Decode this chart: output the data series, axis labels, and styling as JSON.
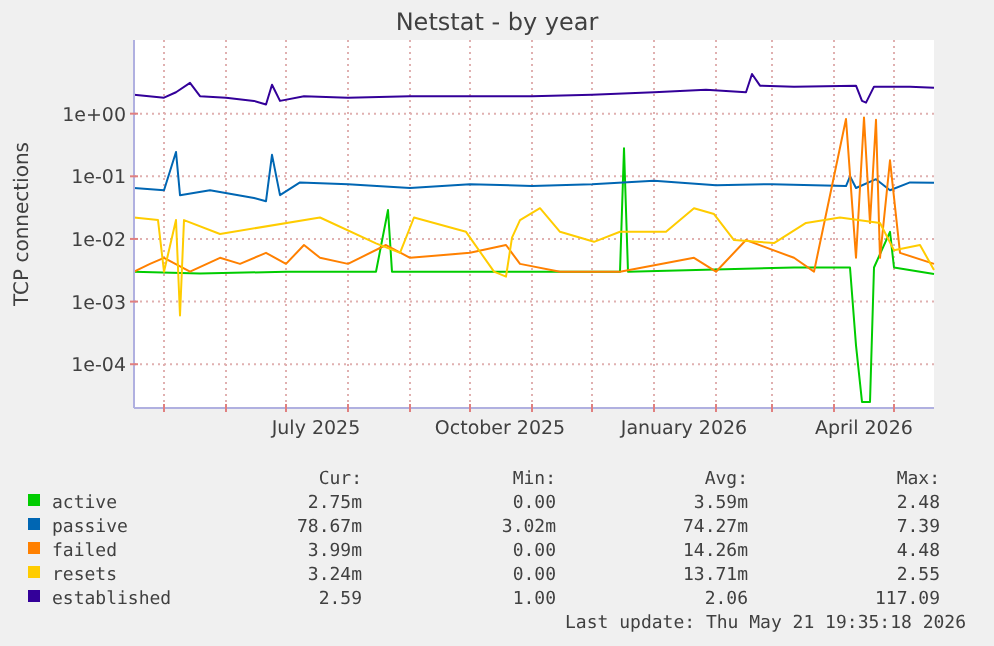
{
  "chart_data": {
    "type": "line",
    "title": "Netstat - by year",
    "ylabel": "TCP connections",
    "log": "y",
    "grid": true,
    "legend": "bottom",
    "line_style": "solid",
    "xlim": [
      "2025-04-16",
      "2026-05-21"
    ],
    "xticks": [
      {
        "value": "2025-05-01",
        "label": null
      },
      {
        "value": "2025-06-01",
        "label": null
      },
      {
        "value": "2025-07-01",
        "label": null
      },
      {
        "value": "2025-07-16",
        "label": "July 2025"
      },
      {
        "value": "2025-08-01",
        "label": null
      },
      {
        "value": "2025-09-01",
        "label": null
      },
      {
        "value": "2025-10-01",
        "label": null
      },
      {
        "value": "2025-10-16",
        "label": "October 2025"
      },
      {
        "value": "2025-11-01",
        "label": null
      },
      {
        "value": "2025-12-01",
        "label": null
      },
      {
        "value": "2026-01-01",
        "label": null
      },
      {
        "value": "2026-01-16",
        "label": "January 2026"
      },
      {
        "value": "2026-02-01",
        "label": null
      },
      {
        "value": "2026-03-01",
        "label": null
      },
      {
        "value": "2026-04-01",
        "label": null
      },
      {
        "value": "2026-04-16",
        "label": "April 2026"
      },
      {
        "value": "2026-05-01",
        "label": null
      }
    ],
    "ylim": [
      2e-05,
      15
    ],
    "yticks": [
      {
        "value": 0.0001,
        "label": "1e-04"
      },
      {
        "value": 0.001,
        "label": "1e-03"
      },
      {
        "value": 0.01,
        "label": "1e-02"
      },
      {
        "value": 0.1,
        "label": "1e-01"
      },
      {
        "value": 1,
        "label": "1e+00"
      }
    ],
    "series": [
      {
        "name": "active",
        "color": "#00cc00",
        "x": [
          "2025-04-16",
          "2025-05-19",
          "2025-07-01",
          "2025-08-15",
          "2025-08-21",
          "2025-08-23",
          "2025-10-01",
          "2025-12-15",
          "2025-12-17",
          "2025-12-19",
          "2026-03-12",
          "2026-04-09",
          "2026-04-12",
          "2026-04-15",
          "2026-04-19",
          "2026-04-21",
          "2026-04-29",
          "2026-05-01",
          "2026-05-21"
        ],
        "values": [
          0.003,
          0.0028,
          0.003,
          0.003,
          0.029,
          0.003,
          0.003,
          0.003,
          0.28,
          0.003,
          0.0035,
          0.0035,
          0.0002,
          2.5e-05,
          2.5e-05,
          0.0035,
          0.013,
          0.0035,
          0.00275
        ]
      },
      {
        "name": "passive",
        "color": "#0066b3",
        "x": [
          "2025-04-16",
          "2025-05-01",
          "2025-05-07",
          "2025-05-09",
          "2025-05-24",
          "2025-06-15",
          "2025-06-21",
          "2025-06-24",
          "2025-06-28",
          "2025-07-08",
          "2025-08-01",
          "2025-09-01",
          "2025-10-01",
          "2025-11-01",
          "2025-12-01",
          "2026-01-01",
          "2026-02-01",
          "2026-03-01",
          "2026-04-07",
          "2026-04-09",
          "2026-04-12",
          "2026-04-22",
          "2026-04-29",
          "2026-05-09",
          "2026-05-21"
        ],
        "values": [
          0.065,
          0.06,
          0.245,
          0.05,
          0.06,
          0.045,
          0.04,
          0.22,
          0.05,
          0.08,
          0.075,
          0.065,
          0.075,
          0.07,
          0.075,
          0.085,
          0.072,
          0.075,
          0.07,
          0.1,
          0.065,
          0.09,
          0.06,
          0.08,
          0.079
        ]
      },
      {
        "name": "failed",
        "color": "#ff8000",
        "x": [
          "2025-04-16",
          "2025-04-24",
          "2025-05-01",
          "2025-05-14",
          "2025-05-29",
          "2025-06-08",
          "2025-06-21",
          "2025-07-01",
          "2025-07-10",
          "2025-07-18",
          "2025-08-01",
          "2025-08-20",
          "2025-09-01",
          "2025-10-01",
          "2025-10-19",
          "2025-10-26",
          "2025-11-15",
          "2025-12-15",
          "2026-01-21",
          "2026-02-01",
          "2026-02-16",
          "2026-03-12",
          "2026-03-22",
          "2026-04-07",
          "2026-04-12",
          "2026-04-16",
          "2026-04-19",
          "2026-04-22",
          "2026-04-24",
          "2026-04-29",
          "2026-05-04",
          "2026-05-21"
        ],
        "values": [
          0.003,
          0.004,
          0.005,
          0.003,
          0.005,
          0.004,
          0.006,
          0.004,
          0.008,
          0.005,
          0.004,
          0.008,
          0.005,
          0.006,
          0.008,
          0.004,
          0.003,
          0.003,
          0.005,
          0.003,
          0.0096,
          0.005,
          0.003,
          0.82,
          0.005,
          0.87,
          0.018,
          0.8,
          0.005,
          0.18,
          0.006,
          0.004
        ]
      },
      {
        "name": "resets",
        "color": "#ffcc00",
        "x": [
          "2025-04-16",
          "2025-04-28",
          "2025-05-01",
          "2025-05-07",
          "2025-05-09",
          "2025-05-11",
          "2025-05-29",
          "2025-07-18",
          "2025-08-15",
          "2025-08-27",
          "2025-09-03",
          "2025-09-29",
          "2025-10-13",
          "2025-10-19",
          "2025-10-22",
          "2025-10-26",
          "2025-11-05",
          "2025-11-15",
          "2025-12-02",
          "2025-12-15",
          "2026-01-07",
          "2026-01-21",
          "2026-01-31",
          "2026-02-10",
          "2026-03-02",
          "2026-03-18",
          "2026-04-04",
          "2026-04-24",
          "2026-05-01",
          "2026-05-14",
          "2026-05-21"
        ],
        "values": [
          0.022,
          0.02,
          0.003,
          0.02,
          0.0006,
          0.02,
          0.012,
          0.022,
          0.0085,
          0.006,
          0.022,
          0.013,
          0.003,
          0.0025,
          0.0105,
          0.02,
          0.031,
          0.013,
          0.009,
          0.013,
          0.013,
          0.031,
          0.025,
          0.0096,
          0.0086,
          0.018,
          0.022,
          0.018,
          0.0066,
          0.008,
          0.0032
        ]
      },
      {
        "name": "established",
        "color": "#330099",
        "x": [
          "2025-04-16",
          "2025-05-01",
          "2025-05-07",
          "2025-05-14",
          "2025-05-19",
          "2025-06-01",
          "2025-06-15",
          "2025-06-21",
          "2025-06-24",
          "2025-06-28",
          "2025-07-10",
          "2025-08-01",
          "2025-09-01",
          "2025-10-01",
          "2025-11-01",
          "2025-12-01",
          "2026-01-01",
          "2026-01-27",
          "2026-02-16",
          "2026-02-19",
          "2026-02-23",
          "2026-03-12",
          "2026-04-12",
          "2026-04-15",
          "2026-04-17",
          "2026-04-21",
          "2026-05-09",
          "2026-05-21"
        ],
        "values": [
          2.0,
          1.8,
          2.2,
          3.1,
          1.9,
          1.8,
          1.6,
          1.4,
          2.9,
          1.6,
          1.9,
          1.8,
          1.9,
          1.9,
          1.9,
          2.0,
          2.2,
          2.4,
          2.2,
          4.3,
          2.8,
          2.7,
          2.8,
          1.6,
          1.5,
          2.7,
          2.7,
          2.59
        ]
      }
    ],
    "annotations": [
      "Cur:",
      "Min:",
      "Avg:",
      "Max:",
      "2.75m",
      "0.00",
      "3.59m",
      "2.48",
      "78.67m",
      "3.02m",
      "74.27m",
      "7.39",
      "3.99m",
      "0.00",
      "14.26m",
      "4.48",
      "3.24m",
      "0.00",
      "13.71m",
      "2.55",
      "2.59",
      "1.00",
      "2.06",
      "117.09",
      "Last update: Thu May 21 19:35:18 2026"
    ]
  }
}
